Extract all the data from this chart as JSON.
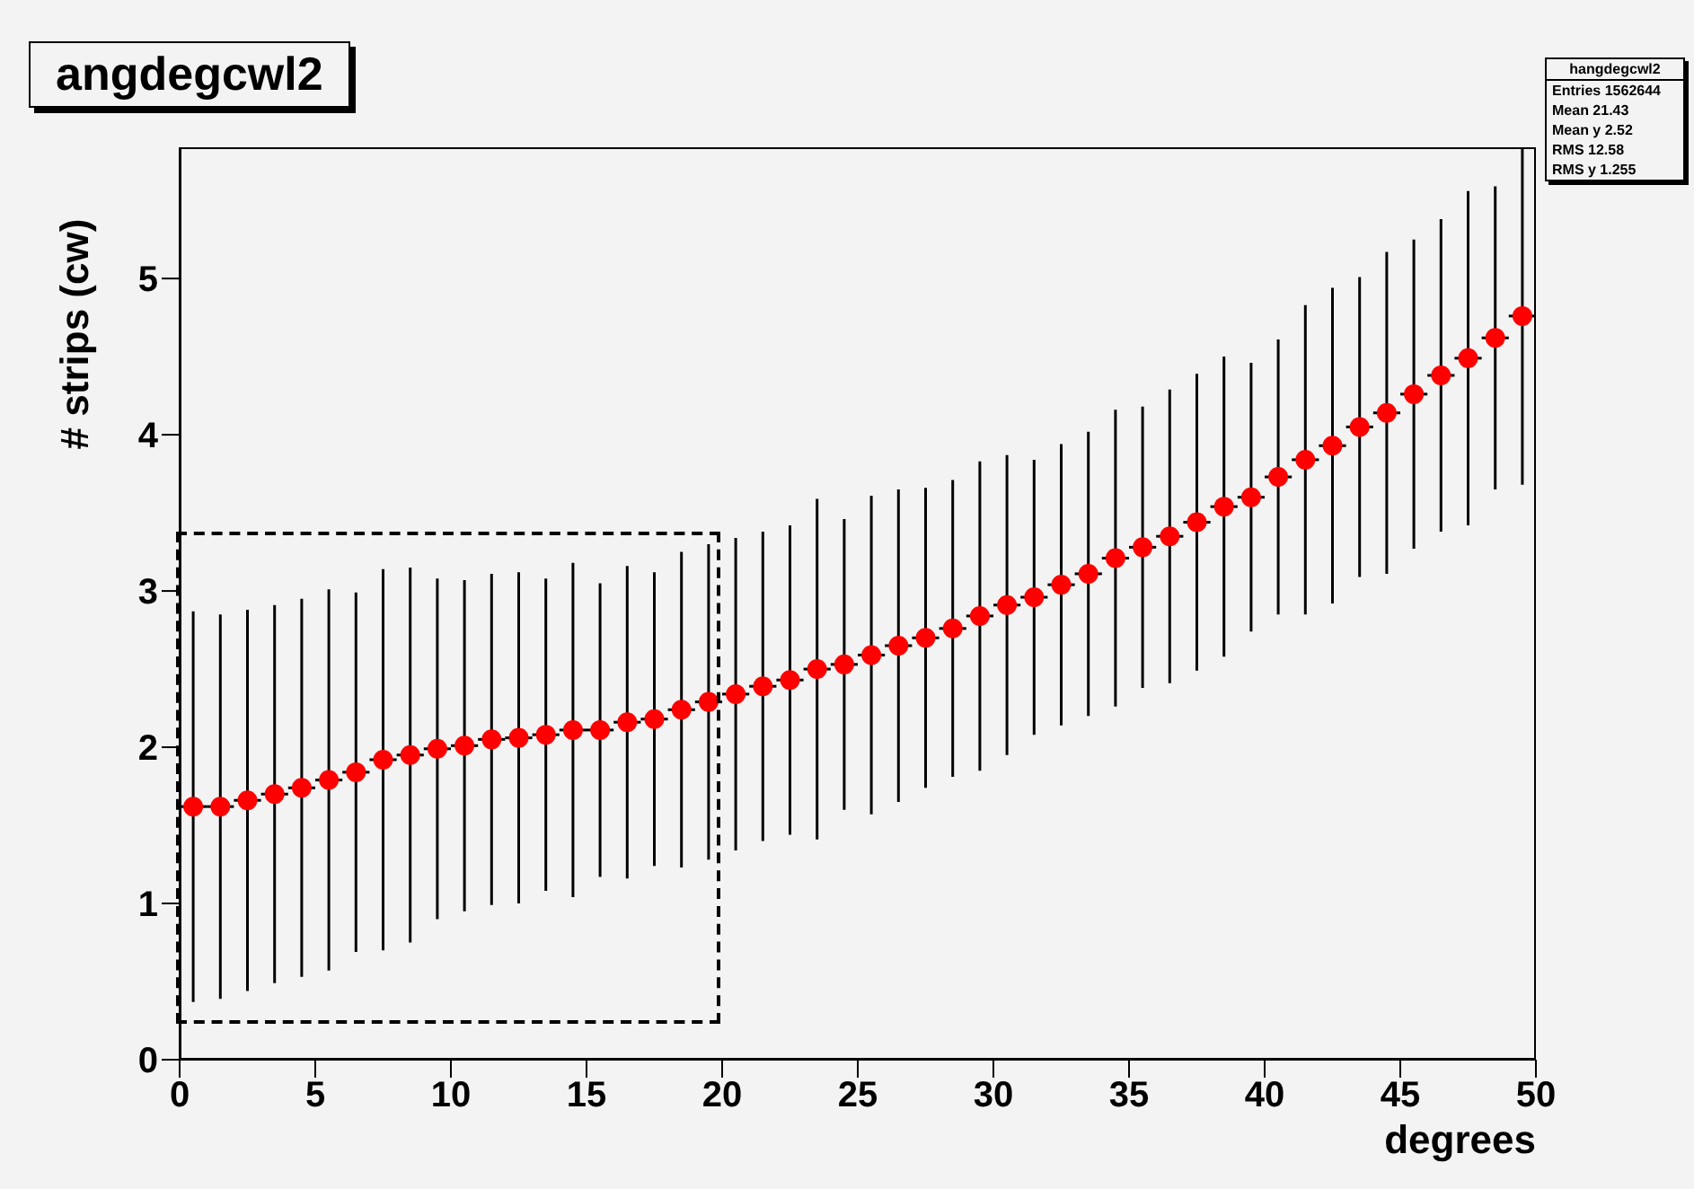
{
  "chart_data": {
    "type": "scatter",
    "title": "angdegcwl2",
    "xlabel": "degrees",
    "ylabel": "# strips (cw)",
    "annotations": [
      "hangdegcwl2",
      "Entries 1562644",
      "Mean 21.43",
      "Mean y 2.52",
      "RMS 12.58",
      "RMS y 1.255"
    ],
    "x": [
      0.5,
      1.5,
      2.5,
      3.5,
      4.5,
      5.5,
      6.5,
      7.5,
      8.5,
      9.5,
      10.5,
      11.5,
      12.5,
      13.5,
      14.5,
      15.5,
      16.5,
      17.5,
      18.5,
      19.5,
      20.5,
      21.5,
      22.5,
      23.5,
      24.5,
      25.5,
      26.5,
      27.5,
      28.5,
      29.5,
      30.5,
      31.5,
      32.5,
      33.5,
      34.5,
      35.5,
      36.5,
      37.5,
      38.5,
      39.5,
      40.5,
      41.5,
      42.5,
      43.5,
      44.5,
      45.5,
      46.5,
      47.5,
      48.5,
      49.5
    ],
    "series": [
      {
        "color": "#ff0000",
        "values": [
          1.62,
          1.62,
          1.66,
          1.7,
          1.74,
          1.79,
          1.84,
          1.92,
          1.95,
          1.99,
          2.01,
          2.05,
          2.06,
          2.08,
          2.11,
          2.11,
          2.16,
          2.18,
          2.24,
          2.29,
          2.34,
          2.39,
          2.43,
          2.5,
          2.53,
          2.59,
          2.65,
          2.7,
          2.76,
          2.84,
          2.91,
          2.96,
          3.04,
          3.11,
          3.21,
          3.28,
          3.35,
          3.44,
          3.54,
          3.6,
          3.73,
          3.84,
          3.93,
          4.05,
          4.14,
          4.26,
          4.38,
          4.49,
          4.62,
          4.76
        ],
        "errors": [
          1.25,
          1.23,
          1.22,
          1.21,
          1.21,
          1.22,
          1.15,
          1.22,
          1.2,
          1.09,
          1.06,
          1.06,
          1.06,
          1.0,
          1.07,
          0.94,
          1.0,
          0.94,
          1.01,
          1.01,
          1.0,
          0.99,
          0.99,
          1.09,
          0.93,
          1.02,
          1.0,
          0.96,
          0.95,
          0.99,
          0.96,
          0.88,
          0.9,
          0.91,
          0.95,
          0.9,
          0.94,
          0.95,
          0.96,
          0.86,
          0.88,
          0.99,
          1.01,
          0.96,
          1.03,
          0.99,
          1.0,
          1.07,
          0.97,
          1.08
        ],
        "xerrors": [
          0.5,
          0.5,
          0.5,
          0.5,
          0.5,
          0.5,
          0.5,
          0.5,
          0.5,
          0.5,
          0.5,
          0.5,
          0.5,
          0.5,
          0.5,
          0.5,
          0.5,
          0.5,
          0.5,
          0.5,
          0.5,
          0.5,
          0.5,
          0.5,
          0.5,
          0.5,
          0.5,
          0.5,
          0.5,
          0.5,
          0.5,
          0.5,
          0.5,
          0.5,
          0.5,
          0.5,
          0.5,
          0.5,
          0.5,
          0.5,
          0.5,
          0.5,
          0.5,
          0.5,
          0.5,
          0.5,
          0.5,
          0.5,
          0.5,
          0.5
        ]
      }
    ],
    "xlim": [
      0,
      50
    ],
    "xticks": [
      0,
      5,
      10,
      15,
      20,
      25,
      30,
      35,
      40,
      45,
      50
    ],
    "ylim": [
      0,
      5.84
    ],
    "yticks": [
      0,
      1,
      2,
      3,
      4,
      5
    ],
    "marker": "circle",
    "legend": false,
    "grid": false
  }
}
